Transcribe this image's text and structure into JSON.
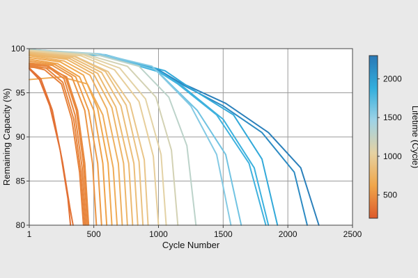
{
  "chart_data": {
    "type": "line",
    "title": "",
    "xlabel": "Cycle Number",
    "ylabel": "Remaining Capacity (%)",
    "xlim": [
      1,
      2500
    ],
    "ylim": [
      80,
      100
    ],
    "x_ticks": [
      1,
      500,
      1000,
      1500,
      2000,
      2500
    ],
    "x_tick_labels": [
      "1",
      "500",
      "1000",
      "1500",
      "2000",
      "2500"
    ],
    "y_ticks": [
      80,
      85,
      90,
      95,
      100
    ],
    "y_tick_labels": [
      "80",
      "85",
      "90",
      "95",
      "100"
    ],
    "grid": true,
    "colorbar": {
      "label": "Lifetime (Cycle)",
      "range": [
        200,
        2300
      ],
      "ticks": [
        500,
        1000,
        1500,
        2000
      ],
      "tick_labels": [
        "500",
        "1000",
        "1500",
        "2000"
      ],
      "colors": [
        "#dd5a2b",
        "#f0a64a",
        "#e6d2a2",
        "#9fd3e6",
        "#33aedd",
        "#2a78b5"
      ]
    },
    "series": [
      {
        "lifetime": 320,
        "start": 97.7,
        "points": [
          [
            1,
            97.7
          ],
          [
            80,
            96.5
          ],
          [
            160,
            93.5
          ],
          [
            240,
            88.5
          ],
          [
            300,
            83
          ],
          [
            320,
            80
          ]
        ]
      },
      {
        "lifetime": 340,
        "start": 97.8,
        "points": [
          [
            1,
            97.8
          ],
          [
            90,
            96.6
          ],
          [
            180,
            93
          ],
          [
            260,
            87
          ],
          [
            315,
            82
          ],
          [
            340,
            80
          ]
        ]
      },
      {
        "lifetime": 420,
        "start": 98.0,
        "points": [
          [
            1,
            98.0
          ],
          [
            120,
            97.6
          ],
          [
            250,
            96
          ],
          [
            330,
            92
          ],
          [
            390,
            86
          ],
          [
            420,
            80
          ]
        ]
      },
      {
        "lifetime": 430,
        "start": 98.1,
        "points": [
          [
            1,
            98.1
          ],
          [
            130,
            97.8
          ],
          [
            260,
            96.2
          ],
          [
            345,
            92
          ],
          [
            400,
            86
          ],
          [
            430,
            80
          ]
        ]
      },
      {
        "lifetime": 440,
        "start": 98.2,
        "points": [
          [
            1,
            98.2
          ],
          [
            140,
            98
          ],
          [
            270,
            96.6
          ],
          [
            355,
            92.5
          ],
          [
            410,
            86.5
          ],
          [
            440,
            80
          ]
        ]
      },
      {
        "lifetime": 450,
        "start": 98.3,
        "points": [
          [
            1,
            98.3
          ],
          [
            150,
            98
          ],
          [
            280,
            96.8
          ],
          [
            365,
            93
          ],
          [
            420,
            87
          ],
          [
            450,
            80
          ]
        ]
      },
      {
        "lifetime": 460,
        "start": 97.9,
        "points": [
          [
            1,
            97.9
          ],
          [
            150,
            97.8
          ],
          [
            290,
            96.8
          ],
          [
            375,
            93
          ],
          [
            430,
            87
          ],
          [
            460,
            80
          ]
        ]
      },
      {
        "lifetime": 520,
        "start": 98.4,
        "points": [
          [
            1,
            98.4
          ],
          [
            180,
            98.1
          ],
          [
            330,
            96.8
          ],
          [
            430,
            93
          ],
          [
            490,
            87
          ],
          [
            520,
            80
          ]
        ]
      },
      {
        "lifetime": 560,
        "start": 98.6,
        "points": [
          [
            1,
            98.6
          ],
          [
            200,
            98.2
          ],
          [
            360,
            96.8
          ],
          [
            460,
            93
          ],
          [
            530,
            87
          ],
          [
            560,
            80
          ]
        ]
      },
      {
        "lifetime": 600,
        "start": 98.8,
        "points": [
          [
            1,
            98.8
          ],
          [
            220,
            98.3
          ],
          [
            390,
            96.8
          ],
          [
            500,
            93
          ],
          [
            570,
            87
          ],
          [
            600,
            80
          ]
        ]
      },
      {
        "lifetime": 640,
        "start": 99.0,
        "points": [
          [
            1,
            99.0
          ],
          [
            240,
            98.5
          ],
          [
            420,
            97
          ],
          [
            530,
            93.2
          ],
          [
            610,
            87
          ],
          [
            640,
            80
          ]
        ]
      },
      {
        "lifetime": 680,
        "start": 96.5,
        "points": [
          [
            1,
            96.5
          ],
          [
            250,
            96.8
          ],
          [
            450,
            96
          ],
          [
            570,
            92.5
          ],
          [
            650,
            86.5
          ],
          [
            680,
            80
          ]
        ]
      },
      {
        "lifetime": 720,
        "start": 99.2,
        "points": [
          [
            1,
            99.2
          ],
          [
            270,
            98.6
          ],
          [
            470,
            97
          ],
          [
            600,
            93.2
          ],
          [
            690,
            87
          ],
          [
            720,
            80
          ]
        ]
      },
      {
        "lifetime": 760,
        "start": 99.3,
        "points": [
          [
            1,
            99.3
          ],
          [
            290,
            98.8
          ],
          [
            500,
            97.1
          ],
          [
            640,
            93.3
          ],
          [
            730,
            87
          ],
          [
            760,
            80
          ]
        ]
      },
      {
        "lifetime": 800,
        "start": 99.4,
        "points": [
          [
            1,
            99.4
          ],
          [
            310,
            98.9
          ],
          [
            530,
            97.2
          ],
          [
            670,
            93.4
          ],
          [
            770,
            87
          ],
          [
            800,
            80
          ]
        ]
      },
      {
        "lifetime": 840,
        "start": 99.5,
        "points": [
          [
            1,
            99.5
          ],
          [
            330,
            99
          ],
          [
            560,
            97.3
          ],
          [
            710,
            93.5
          ],
          [
            810,
            87
          ],
          [
            840,
            80
          ]
        ]
      },
      {
        "lifetime": 880,
        "start": 99.6,
        "points": [
          [
            1,
            99.6
          ],
          [
            350,
            99.1
          ],
          [
            590,
            97.4
          ],
          [
            750,
            93.6
          ],
          [
            850,
            87.2
          ],
          [
            880,
            80
          ]
        ]
      },
      {
        "lifetime": 920,
        "start": 99.6,
        "points": [
          [
            1,
            99.6
          ],
          [
            360,
            99.1
          ],
          [
            610,
            97.4
          ],
          [
            780,
            93.8
          ],
          [
            890,
            87.4
          ],
          [
            920,
            80
          ]
        ]
      },
      {
        "lifetime": 1000,
        "start": 99.7,
        "points": [
          [
            1,
            99.7
          ],
          [
            400,
            99.2
          ],
          [
            660,
            97.6
          ],
          [
            850,
            94
          ],
          [
            960,
            87.8
          ],
          [
            1000,
            80
          ]
        ]
      },
      {
        "lifetime": 1060,
        "start": 99.8,
        "points": [
          [
            1,
            99.8
          ],
          [
            420,
            99.3
          ],
          [
            700,
            97.8
          ],
          [
            900,
            94.3
          ],
          [
            1020,
            88
          ],
          [
            1060,
            80
          ]
        ]
      },
      {
        "lifetime": 1150,
        "start": 99.8,
        "points": [
          [
            1,
            99.8
          ],
          [
            450,
            99.3
          ],
          [
            760,
            98
          ],
          [
            980,
            94.5
          ],
          [
            1100,
            88.5
          ],
          [
            1150,
            80
          ]
        ]
      },
      {
        "lifetime": 1290,
        "start": 99.9,
        "points": [
          [
            1,
            99.9
          ],
          [
            500,
            99.4
          ],
          [
            850,
            98
          ],
          [
            1080,
            94.5
          ],
          [
            1220,
            89
          ],
          [
            1290,
            80
          ]
        ]
      },
      {
        "lifetime": 1560,
        "start": 99.9,
        "points": [
          [
            1,
            99.9
          ],
          [
            550,
            99.4
          ],
          [
            950,
            98
          ],
          [
            1250,
            93.5
          ],
          [
            1450,
            88
          ],
          [
            1560,
            80
          ]
        ]
      },
      {
        "lifetime": 1640,
        "start": 99.9,
        "points": [
          [
            1,
            99.9
          ],
          [
            560,
            99.3
          ],
          [
            980,
            97.6
          ],
          [
            1300,
            93
          ],
          [
            1520,
            88
          ],
          [
            1640,
            80
          ]
        ]
      },
      {
        "lifetime": 1830,
        "start": 99.9,
        "points": [
          [
            1,
            99.9
          ],
          [
            570,
            99.2
          ],
          [
            1000,
            97.4
          ],
          [
            1150,
            96
          ],
          [
            1450,
            92.5
          ],
          [
            1700,
            87
          ],
          [
            1830,
            80
          ]
        ]
      },
      {
        "lifetime": 1850,
        "start": 99.9,
        "points": [
          [
            1,
            99.9
          ],
          [
            580,
            99.2
          ],
          [
            1020,
            97.3
          ],
          [
            1180,
            95.8
          ],
          [
            1500,
            92
          ],
          [
            1740,
            86.5
          ],
          [
            1850,
            80
          ]
        ]
      },
      {
        "lifetime": 1920,
        "start": 99.9,
        "points": [
          [
            1,
            99.9
          ],
          [
            590,
            99.3
          ],
          [
            1050,
            97.5
          ],
          [
            1250,
            95.5
          ],
          [
            1580,
            92.5
          ],
          [
            1800,
            87.5
          ],
          [
            1920,
            80
          ]
        ]
      },
      {
        "lifetime": 2150,
        "start": 99.9,
        "points": [
          [
            1,
            99.9
          ],
          [
            600,
            99.2
          ],
          [
            1000,
            97.6
          ],
          [
            1200,
            95.8
          ],
          [
            1500,
            93.5
          ],
          [
            1800,
            90.5
          ],
          [
            2050,
            86
          ],
          [
            2150,
            80
          ]
        ]
      },
      {
        "lifetime": 2240,
        "start": 99.9,
        "points": [
          [
            1,
            99.9
          ],
          [
            600,
            99.2
          ],
          [
            1000,
            97.6
          ],
          [
            1150,
            96.3
          ],
          [
            1520,
            93.8
          ],
          [
            1850,
            90.5
          ],
          [
            2100,
            86.5
          ],
          [
            2240,
            80
          ]
        ]
      }
    ]
  }
}
